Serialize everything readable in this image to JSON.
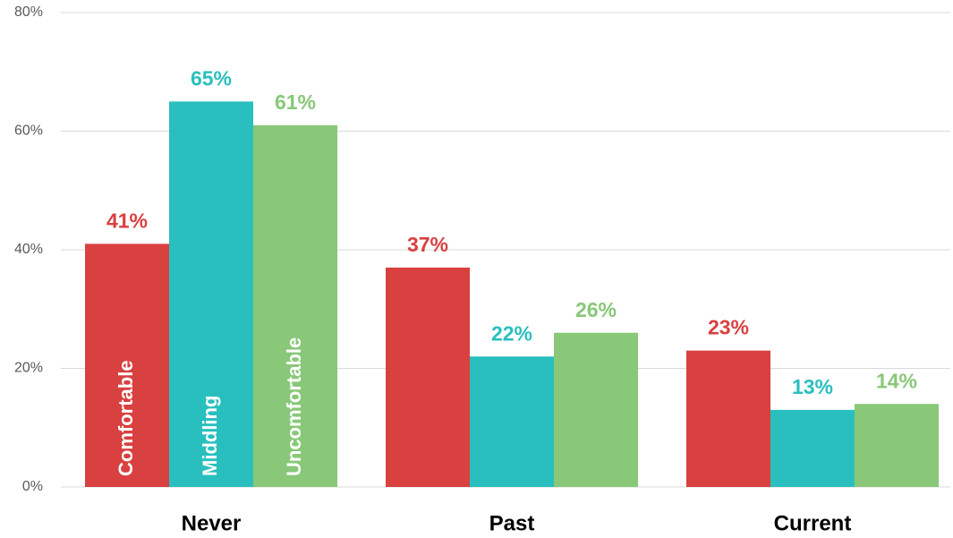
{
  "chart_data": {
    "type": "bar",
    "categories": [
      "Never",
      "Past",
      "Current"
    ],
    "series": [
      {
        "name": "Comfortable",
        "color": "#d94040",
        "values": [
          41,
          37,
          23
        ],
        "value_labels": [
          "41%",
          "37%",
          "23%"
        ]
      },
      {
        "name": "Middling",
        "color": "#2abfbf",
        "values": [
          65,
          22,
          13
        ],
        "value_labels": [
          "65%",
          "22%",
          "13%"
        ]
      },
      {
        "name": "Uncomfortable",
        "color": "#88c878",
        "values": [
          61,
          26,
          14
        ],
        "value_labels": [
          "61%",
          "26%",
          "14%"
        ]
      }
    ],
    "ylim": [
      0,
      80
    ],
    "yticks": [
      {
        "value": 0,
        "label": "0%"
      },
      {
        "value": 20,
        "label": "20%"
      },
      {
        "value": 40,
        "label": "40%"
      },
      {
        "value": 60,
        "label": "60%"
      },
      {
        "value": 80,
        "label": "80%"
      }
    ],
    "grid": true
  }
}
